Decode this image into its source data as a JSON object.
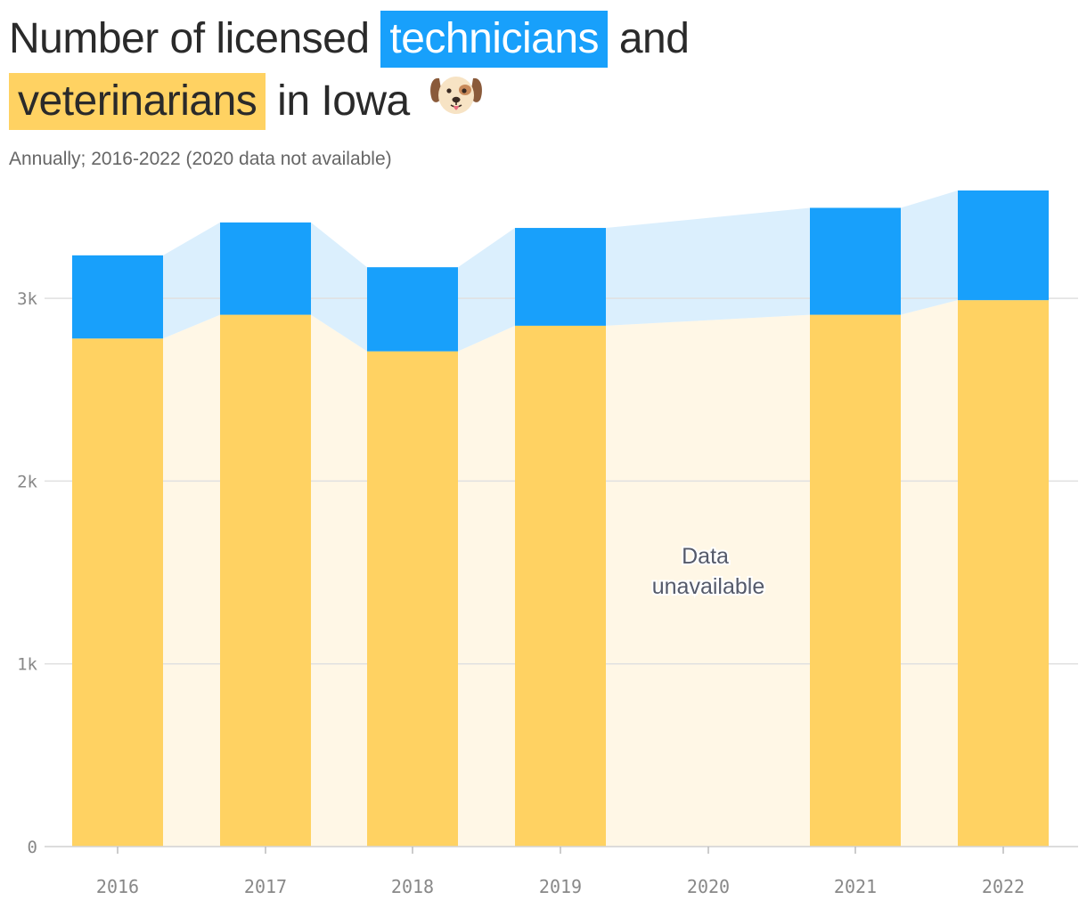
{
  "title": {
    "part1": "Number of licensed",
    "technicians": "technicians",
    "part2": "and",
    "veterinarians": "veterinarians",
    "part3": "in Iowa"
  },
  "subtitle": "Annually; 2016-2022 (2020 data not available)",
  "annotation": [
    "Data",
    "unavailable"
  ],
  "colors": {
    "technicians": "#18a0fb",
    "veterinarians": "#ffd262",
    "technicians_band": "#dbeffd",
    "veterinarians_band": "#fff7e6",
    "grid": "#e0e0e0"
  },
  "icons": {
    "title_emoji": "dog-face-icon"
  },
  "chart_data": {
    "type": "bar",
    "stacked": true,
    "categories": [
      "2016",
      "2017",
      "2018",
      "2019",
      "2020",
      "2021",
      "2022"
    ],
    "series": [
      {
        "name": "veterinarians",
        "values": [
          2780,
          2910,
          2710,
          2850,
          null,
          2910,
          2990
        ]
      },
      {
        "name": "technicians",
        "values": [
          455,
          505,
          460,
          535,
          null,
          585,
          600
        ]
      }
    ],
    "ylim": [
      0,
      3600
    ],
    "yticks": [
      0,
      1000,
      2000,
      3000
    ],
    "ytick_labels": [
      "0",
      "1k",
      "2k",
      "3k"
    ],
    "missing_category": "2020",
    "grid": true
  }
}
